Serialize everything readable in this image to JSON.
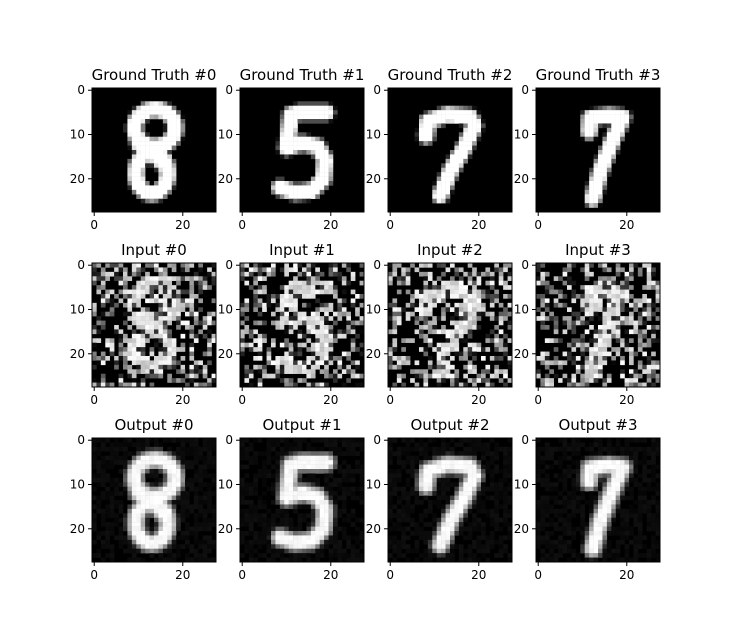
{
  "chart_data": {
    "type": "image_grid",
    "grid": {
      "rows": 3,
      "cols": 4
    },
    "image_size": [
      28,
      28
    ],
    "colormap": "gray",
    "x_ticks": [
      0,
      20
    ],
    "y_ticks": [
      0,
      10,
      20
    ],
    "rows": [
      {
        "titles": [
          "Ground Truth #0",
          "Ground Truth #1",
          "Ground Truth #2",
          "Ground Truth #3"
        ],
        "kind": "clean"
      },
      {
        "titles": [
          "Input #0",
          "Input #1",
          "Input #2",
          "Input #3"
        ],
        "kind": "noisy"
      },
      {
        "titles": [
          "Output #0",
          "Output #1",
          "Output #2",
          "Output #3"
        ],
        "kind": "denoised"
      }
    ],
    "digits": [
      "8",
      "5",
      "7",
      "7"
    ]
  }
}
